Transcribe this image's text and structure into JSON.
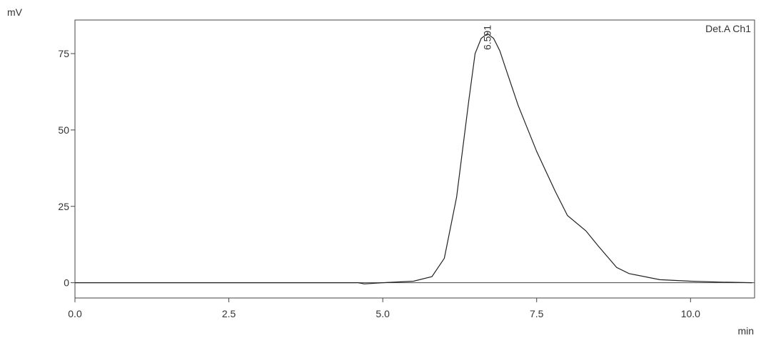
{
  "chart_data": {
    "type": "line",
    "y_unit": "mV",
    "x_unit": "min",
    "channel": "Det.A Ch1",
    "peak_time": 6.591,
    "x": [
      0,
      1,
      2,
      3,
      4,
      4.6,
      4.7,
      5.0,
      5.5,
      5.8,
      6.0,
      6.2,
      6.4,
      6.5,
      6.6,
      6.7,
      6.8,
      6.9,
      7.0,
      7.2,
      7.5,
      7.8,
      8.0,
      8.3,
      8.5,
      8.8,
      9.0,
      9.5,
      10.0,
      10.5,
      11.0
    ],
    "series": [
      {
        "name": "Det.A Ch1",
        "color": "#222222",
        "values": [
          0,
          0,
          0,
          0,
          0,
          0,
          -0.4,
          0,
          0.5,
          2,
          8,
          28,
          60,
          75,
          80,
          81.5,
          80,
          76,
          70,
          58,
          43,
          30,
          22,
          17,
          12,
          5,
          3,
          1,
          0.5,
          0.2,
          0
        ]
      }
    ],
    "xlim": [
      0,
      11.04
    ],
    "ylim": [
      -5,
      86
    ],
    "xticks": [
      {
        "value": 0,
        "label": "0.0"
      },
      2.5,
      {
        "value": 5,
        "label": "5.0"
      },
      7.5,
      {
        "value": 10,
        "label": "10.0"
      }
    ],
    "yticks": [
      0,
      25,
      50,
      75
    ]
  }
}
